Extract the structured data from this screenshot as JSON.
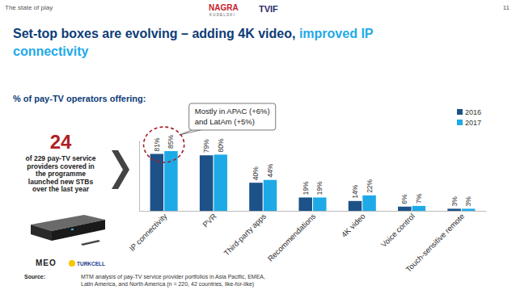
{
  "slide": {
    "header": "The state of play",
    "page_number": 11,
    "logos": [
      "NAGRA",
      "KUDELSKI",
      "TVIF"
    ],
    "title_lines": [
      [
        {
          "text": "Set-top boxes are evolving – adding 4K video,",
          "color": "#0d3c78"
        },
        {
          "text": "improved IP",
          "color": "#1eaae7"
        }
      ],
      [
        {
          "text": "connectivity",
          "color": "#1eaae7"
        }
      ]
    ],
    "callout": {
      "number": 24,
      "lines": [
        "of 229 pay-TV service",
        "providers covered in",
        "the programme",
        "launched new STBs",
        "over the last year"
      ]
    },
    "partner_logos": [
      "MEO",
      "TURKCELL"
    ],
    "source_label": "Source:",
    "source_lines": [
      "MTM analysis of pay-TV service provider portfolios in Asia Pacific, EMEA,",
      "Latin America, and North America (n = 220, 42 countries, like-for-like)"
    ]
  },
  "chart_data": {
    "type": "bar",
    "title": "% of pay-TV operators offering:",
    "categories": [
      "IP connectivity",
      "PVR",
      "Third-party apps",
      "Recommendations",
      "4K video",
      "Voice control",
      "Touch-sensitive remote"
    ],
    "series": [
      {
        "name": "2016",
        "color": "#1d5288",
        "values": [
          81,
          79,
          40,
          19,
          14,
          6,
          3
        ],
        "value_labels": [
          "81%",
          "79%",
          "40%",
          "19%",
          "14%",
          "6%",
          "3%"
        ]
      },
      {
        "name": "2017",
        "color": "#1eaae7",
        "values": [
          85,
          80,
          44,
          19,
          22,
          7,
          3
        ],
        "value_labels": [
          "85%",
          "80%",
          "44%",
          "19%",
          "22%",
          "7%",
          "3%"
        ]
      }
    ],
    "ylim": [
      0,
      100
    ],
    "data_labels": true,
    "tick_labels": "x",
    "legend": "top-right",
    "grid": false,
    "annotations": [
      {
        "category": "IP connectivity",
        "lines": [
          "Mostly in APAC (+6%)",
          "and LatAm (+5%)"
        ]
      }
    ]
  }
}
